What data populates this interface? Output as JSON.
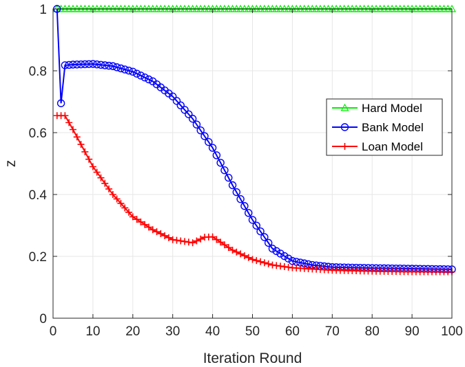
{
  "chart_data": {
    "type": "line",
    "title": "",
    "xlabel": "Iteration Round",
    "ylabel": "z",
    "xlim": [
      0,
      100
    ],
    "ylim": [
      0,
      1
    ],
    "xticks": [
      0,
      10,
      20,
      30,
      40,
      50,
      60,
      70,
      80,
      90,
      100
    ],
    "yticks": [
      0,
      0.2,
      0.4,
      0.6,
      0.8,
      1
    ],
    "ytick_labels": [
      "0",
      "0.2",
      "0.4",
      "0.6",
      "0.8",
      "1"
    ],
    "grid": true,
    "legend_position": "right",
    "series": [
      {
        "name": "Hard Model",
        "color": "#00ee00",
        "marker": "triangle",
        "anchors": [
          [
            1,
            1.0
          ],
          [
            100,
            1.0
          ]
        ]
      },
      {
        "name": "Bank Model",
        "color": "#0000ff",
        "marker": "circle",
        "anchors": [
          [
            1,
            1.0
          ],
          [
            2,
            0.695
          ],
          [
            3,
            0.818
          ],
          [
            5,
            0.82
          ],
          [
            10,
            0.822
          ],
          [
            15,
            0.815
          ],
          [
            20,
            0.797
          ],
          [
            25,
            0.766
          ],
          [
            30,
            0.717
          ],
          [
            35,
            0.645
          ],
          [
            40,
            0.551
          ],
          [
            45,
            0.43
          ],
          [
            50,
            0.318
          ],
          [
            55,
            0.225
          ],
          [
            60,
            0.185
          ],
          [
            65,
            0.172
          ],
          [
            70,
            0.165
          ],
          [
            80,
            0.162
          ],
          [
            90,
            0.16
          ],
          [
            100,
            0.158
          ]
        ]
      },
      {
        "name": "Loan Model",
        "color": "#ff0000",
        "marker": "plus",
        "anchors": [
          [
            1,
            0.655
          ],
          [
            3,
            0.655
          ],
          [
            5,
            0.61
          ],
          [
            10,
            0.49
          ],
          [
            15,
            0.4
          ],
          [
            20,
            0.328
          ],
          [
            25,
            0.286
          ],
          [
            30,
            0.254
          ],
          [
            35,
            0.244
          ],
          [
            38,
            0.262
          ],
          [
            40,
            0.263
          ],
          [
            45,
            0.22
          ],
          [
            50,
            0.19
          ],
          [
            55,
            0.172
          ],
          [
            60,
            0.163
          ],
          [
            70,
            0.155
          ],
          [
            80,
            0.152
          ],
          [
            90,
            0.15
          ],
          [
            100,
            0.15
          ]
        ]
      }
    ]
  }
}
